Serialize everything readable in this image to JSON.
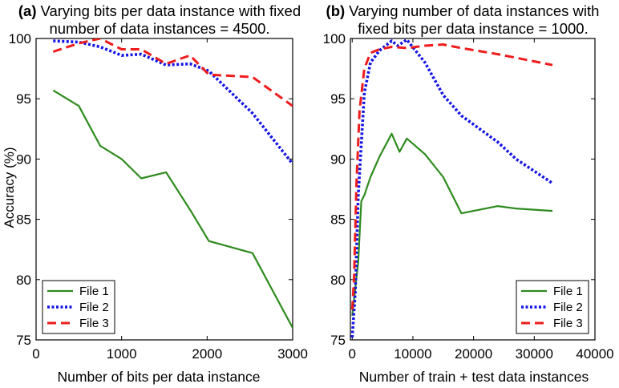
{
  "colors": {
    "file1": "#2e8b1e",
    "file2": "#1414e6",
    "file3": "#ee1c1c",
    "axis": "#000000"
  },
  "chart_data": [
    {
      "type": "line",
      "panel_label": "(a)",
      "title_line1": "Varying bits per data instance with fixed",
      "title_line2": "number of data instances = 4500.",
      "xlabel": "Number of bits per data instance",
      "ylabel": "Accuracy (%)",
      "xlim": [
        0,
        3000
      ],
      "ylim": [
        75,
        100
      ],
      "xticks": [
        0,
        1000,
        2000,
        3000
      ],
      "yticks": [
        75,
        80,
        85,
        90,
        95,
        100
      ],
      "xtick_labels": [
        "0",
        "1000",
        "2000",
        "3000"
      ],
      "ytick_labels": [
        "75",
        "80",
        "85",
        "90",
        "95",
        "100"
      ],
      "legend_position": "bottom-left",
      "series": [
        {
          "name": "File 1",
          "style": "solid",
          "x": [
            200,
            500,
            750,
            1000,
            1230,
            1520,
            1800,
            2020,
            2530,
            3000
          ],
          "y": [
            95.7,
            94.4,
            91.1,
            90.0,
            88.4,
            88.9,
            85.8,
            83.2,
            82.2,
            76.0
          ]
        },
        {
          "name": "File 2",
          "style": "dotted",
          "x": [
            200,
            500,
            750,
            1000,
            1230,
            1520,
            1800,
            2020,
            2530,
            3000
          ],
          "y": [
            99.8,
            99.7,
            99.3,
            98.6,
            98.7,
            97.8,
            97.9,
            97.3,
            93.8,
            89.6
          ]
        },
        {
          "name": "File 3",
          "style": "dashed",
          "x": [
            200,
            500,
            750,
            1000,
            1230,
            1520,
            1800,
            2020,
            2530,
            3000
          ],
          "y": [
            98.9,
            99.6,
            100.0,
            99.1,
            99.1,
            97.9,
            98.6,
            97.0,
            96.8,
            94.4
          ]
        }
      ]
    },
    {
      "type": "line",
      "panel_label": "(b)",
      "title_line1": "Varying number of data instances with",
      "title_line2": "fixed bits per data instance = 1000.",
      "xlabel": "Number of train + test data instances",
      "ylabel": "",
      "xlim": [
        -300,
        40000
      ],
      "ylim": [
        75,
        100
      ],
      "xticks": [
        0,
        10000,
        20000,
        30000,
        40000
      ],
      "yticks": [
        75,
        80,
        85,
        90,
        95,
        100
      ],
      "xtick_labels": [
        "0",
        "10000",
        "20000",
        "30000",
        "40000"
      ],
      "ytick_labels": [
        "75",
        "80",
        "85",
        "90",
        "95",
        "100"
      ],
      "legend_position": "bottom-right",
      "series": [
        {
          "name": "File 1",
          "style": "solid",
          "x": [
            0,
            1000,
            1500,
            2000,
            3000,
            4500,
            6500,
            7800,
            9000,
            12000,
            15000,
            18000,
            24000,
            27000,
            33000
          ],
          "y": [
            77.0,
            81.5,
            86.5,
            87.0,
            88.5,
            90.2,
            92.1,
            90.6,
            91.7,
            90.4,
            88.5,
            85.5,
            86.1,
            85.9,
            85.7
          ]
        },
        {
          "name": "File 2",
          "style": "dotted",
          "x": [
            0,
            500,
            1000,
            2000,
            3000,
            4500,
            6500,
            7500,
            9000,
            12000,
            15000,
            18000,
            24000,
            27000,
            33000
          ],
          "y": [
            75.2,
            79.0,
            87.0,
            95.5,
            98.0,
            99.0,
            99.8,
            99.4,
            99.9,
            98.0,
            95.3,
            93.6,
            91.4,
            90.0,
            88.0
          ]
        },
        {
          "name": "File 3",
          "style": "dashed",
          "x": [
            0,
            300,
            700,
            1200,
            2000,
            3000,
            4500,
            6500,
            9000,
            12000,
            15000,
            18000,
            24000,
            27000,
            33000
          ],
          "y": [
            77.5,
            80.0,
            88.0,
            94.0,
            97.5,
            98.8,
            99.1,
            99.3,
            99.2,
            99.4,
            99.5,
            99.2,
            98.7,
            98.4,
            97.8
          ]
        }
      ]
    }
  ]
}
